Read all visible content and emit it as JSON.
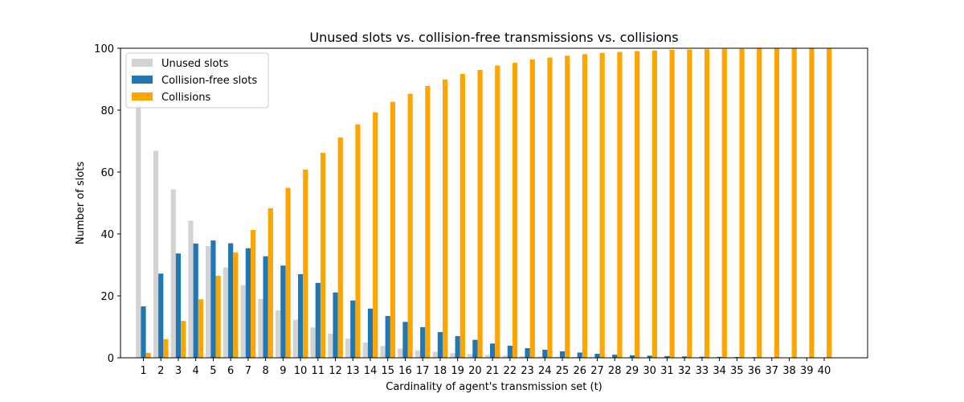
{
  "chart_data": {
    "type": "bar",
    "title": "Unused slots vs. collision-free transmissions vs. collisions",
    "xlabel": "Cardinality of agent's transmission set (t)",
    "ylabel": "Number of slots",
    "ylim": [
      0,
      100
    ],
    "yticks": [
      0,
      20,
      40,
      60,
      80,
      100
    ],
    "grid": false,
    "legend_position": "upper-left",
    "categories": [
      "1",
      "2",
      "3",
      "4",
      "5",
      "6",
      "7",
      "8",
      "9",
      "10",
      "11",
      "12",
      "13",
      "14",
      "15",
      "16",
      "17",
      "18",
      "19",
      "20",
      "21",
      "22",
      "23",
      "24",
      "25",
      "26",
      "27",
      "28",
      "29",
      "30",
      "31",
      "32",
      "33",
      "34",
      "35",
      "36",
      "37",
      "38",
      "39",
      "40"
    ],
    "series": [
      {
        "name": "Unused slots",
        "color": "#d3d3d3",
        "values": [
          81.8,
          66.9,
          54.4,
          44.3,
          36.1,
          29.2,
          23.5,
          19.0,
          15.3,
          12.3,
          9.8,
          7.8,
          6.2,
          4.9,
          3.8,
          3.0,
          2.4,
          1.9,
          1.5,
          1.2,
          0.9,
          0.7,
          0.5,
          0.4,
          0.3,
          0.25,
          0.2,
          0.15,
          0.1,
          0.1,
          0.05,
          0.05,
          0.04,
          0.03,
          0.02,
          0.02,
          0.01,
          0.01,
          0.01,
          0.0
        ]
      },
      {
        "name": "Collision-free slots",
        "color": "#1f77b4",
        "values": [
          16.6,
          27.2,
          33.7,
          36.9,
          37.9,
          37.0,
          35.4,
          32.8,
          29.8,
          27.0,
          24.2,
          21.1,
          18.5,
          15.9,
          13.5,
          11.6,
          9.9,
          8.3,
          7.0,
          5.8,
          4.6,
          3.9,
          3.1,
          2.6,
          2.1,
          1.7,
          1.3,
          1.0,
          0.8,
          0.7,
          0.55,
          0.45,
          0.35,
          0.3,
          0.25,
          0.2,
          0.15,
          0.1,
          0.1,
          0.05
        ]
      },
      {
        "name": "Collisions",
        "color": "#ffa500",
        "values": [
          1.6,
          6.0,
          11.9,
          18.9,
          26.5,
          34.0,
          41.3,
          48.3,
          54.9,
          60.8,
          66.2,
          71.2,
          75.4,
          79.3,
          82.7,
          85.3,
          87.8,
          89.9,
          91.7,
          93.0,
          94.4,
          95.3,
          96.4,
          97.0,
          97.6,
          98.1,
          98.5,
          98.8,
          99.1,
          99.3,
          99.5,
          99.6,
          99.7,
          99.8,
          99.8,
          99.9,
          99.9,
          99.9,
          100.0,
          100.0
        ]
      }
    ]
  }
}
